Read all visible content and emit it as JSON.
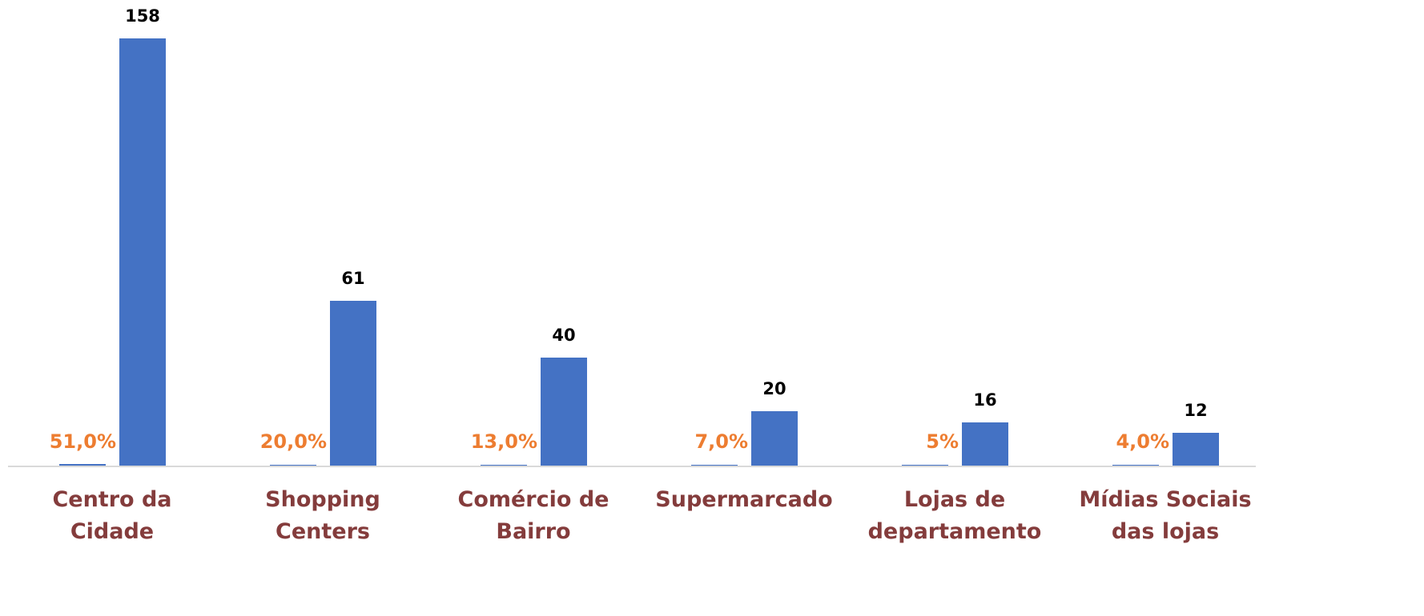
{
  "chart_data": {
    "type": "bar",
    "categories": [
      "Centro da Cidade",
      "Shopping Centers",
      "Comércio de Bairro",
      "Supermarcado",
      "Lojas de departamento",
      "Mídias Sociais das lojas"
    ],
    "series": [
      {
        "color": "#4472c4",
        "values": [
          51,
          20,
          13,
          7,
          5,
          4
        ],
        "value_labels": [
          "51,0%",
          "20,0%",
          "13,0%",
          "7,0%",
          "5%",
          "4,0%"
        ],
        "label_color": "#ed7d31"
      },
      {
        "color": "#4472c4",
        "values": [
          158,
          61,
          40,
          20,
          16,
          12
        ],
        "label_color": "#000000"
      }
    ],
    "category_label_color": "#843c3c"
  }
}
